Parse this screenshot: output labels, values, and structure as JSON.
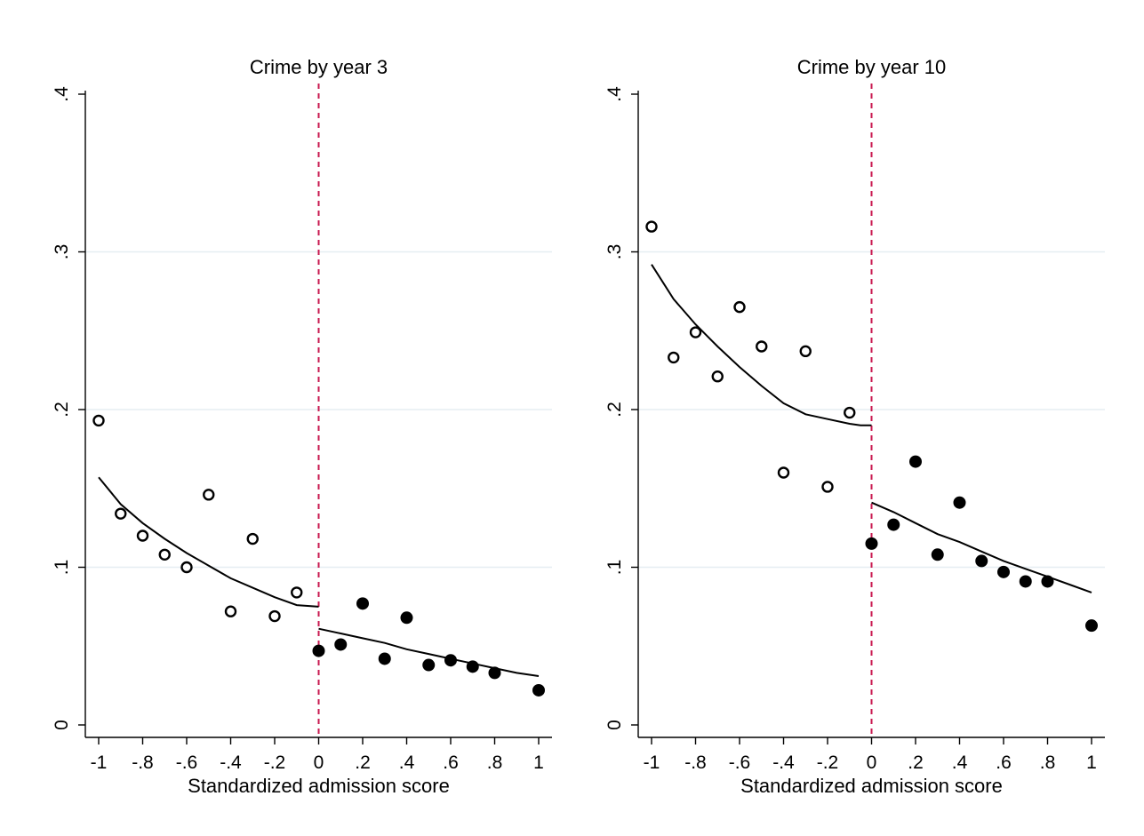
{
  "chart_data": [
    {
      "type": "scatter",
      "title": "Crime by year 3",
      "xlabel": "Standardized admission score",
      "ylabel": "",
      "xlim": [
        -1,
        1
      ],
      "ylim": [
        0,
        0.4
      ],
      "x_ticks": [
        -1,
        -0.8,
        -0.6,
        -0.4,
        -0.2,
        0,
        0.2,
        0.4,
        0.6,
        0.8,
        1
      ],
      "x_tick_labels": [
        "-1",
        "-.8",
        "-.6",
        "-.4",
        "-.2",
        "0",
        ".2",
        ".4",
        ".6",
        ".8",
        "1"
      ],
      "y_ticks": [
        0,
        0.1,
        0.2,
        0.3,
        0.4
      ],
      "y_tick_labels": [
        "0",
        ".1",
        ".2",
        ".3",
        ".4"
      ],
      "grid": "horizontal",
      "cutoff_line": {
        "x": 0,
        "color": "#c8174e",
        "style": "dashed"
      },
      "series": [
        {
          "marker": "hollow-circle",
          "x": [
            -1,
            -0.9,
            -0.8,
            -0.7,
            -0.6,
            -0.5,
            -0.4,
            -0.3,
            -0.2,
            -0.1
          ],
          "y": [
            0.193,
            0.134,
            0.12,
            0.108,
            0.1,
            0.146,
            0.072,
            0.118,
            0.069,
            0.084
          ]
        },
        {
          "marker": "filled-circle",
          "x": [
            0,
            0.1,
            0.2,
            0.3,
            0.4,
            0.5,
            0.6,
            0.7,
            0.8,
            1
          ],
          "y": [
            0.047,
            0.051,
            0.077,
            0.042,
            0.068,
            0.038,
            0.041,
            0.037,
            0.033,
            0.022
          ]
        }
      ],
      "fit_lines": [
        {
          "x": [
            -1,
            -0.9,
            -0.8,
            -0.7,
            -0.6,
            -0.5,
            -0.4,
            -0.3,
            -0.2,
            -0.1,
            0
          ],
          "y": [
            0.157,
            0.14,
            0.128,
            0.118,
            0.109,
            0.101,
            0.093,
            0.087,
            0.081,
            0.076,
            0.075
          ]
        },
        {
          "x": [
            0,
            0.1,
            0.2,
            0.3,
            0.4,
            0.5,
            0.6,
            0.7,
            0.8,
            0.9,
            1
          ],
          "y": [
            0.061,
            0.058,
            0.055,
            0.052,
            0.048,
            0.045,
            0.042,
            0.039,
            0.036,
            0.033,
            0.031
          ]
        }
      ]
    },
    {
      "type": "scatter",
      "title": "Crime by year 10",
      "xlabel": "Standardized admission score",
      "ylabel": "",
      "xlim": [
        -1,
        1
      ],
      "ylim": [
        0,
        0.4
      ],
      "x_ticks": [
        -1,
        -0.8,
        -0.6,
        -0.4,
        -0.2,
        0,
        0.2,
        0.4,
        0.6,
        0.8,
        1
      ],
      "x_tick_labels": [
        "-1",
        "-.8",
        "-.6",
        "-.4",
        "-.2",
        "0",
        ".2",
        ".4",
        ".6",
        ".8",
        "1"
      ],
      "y_ticks": [
        0,
        0.1,
        0.2,
        0.3,
        0.4
      ],
      "y_tick_labels": [
        "0",
        ".1",
        ".2",
        ".3",
        ".4"
      ],
      "grid": "horizontal",
      "cutoff_line": {
        "x": 0,
        "color": "#c8174e",
        "style": "dashed"
      },
      "series": [
        {
          "marker": "hollow-circle",
          "x": [
            -1,
            -0.9,
            -0.8,
            -0.7,
            -0.6,
            -0.5,
            -0.4,
            -0.3,
            -0.2,
            -0.1
          ],
          "y": [
            0.316,
            0.233,
            0.249,
            0.221,
            0.265,
            0.24,
            0.16,
            0.237,
            0.151,
            0.198
          ]
        },
        {
          "marker": "filled-circle",
          "x": [
            0,
            0.1,
            0.2,
            0.3,
            0.4,
            0.5,
            0.6,
            0.7,
            0.8,
            1
          ],
          "y": [
            0.115,
            0.127,
            0.167,
            0.108,
            0.141,
            0.104,
            0.097,
            0.091,
            0.091,
            0.063
          ]
        }
      ],
      "fit_lines": [
        {
          "x": [
            -1,
            -0.9,
            -0.8,
            -0.7,
            -0.6,
            -0.5,
            -0.4,
            -0.3,
            -0.2,
            -0.1,
            -0.05,
            0
          ],
          "y": [
            0.292,
            0.27,
            0.254,
            0.24,
            0.227,
            0.215,
            0.204,
            0.197,
            0.194,
            0.191,
            0.19,
            0.19
          ]
        },
        {
          "x": [
            0,
            0.1,
            0.2,
            0.3,
            0.4,
            0.5,
            0.6,
            0.7,
            0.8,
            0.9,
            1
          ],
          "y": [
            0.141,
            0.135,
            0.128,
            0.121,
            0.116,
            0.11,
            0.104,
            0.099,
            0.094,
            0.089,
            0.084
          ]
        }
      ]
    }
  ]
}
